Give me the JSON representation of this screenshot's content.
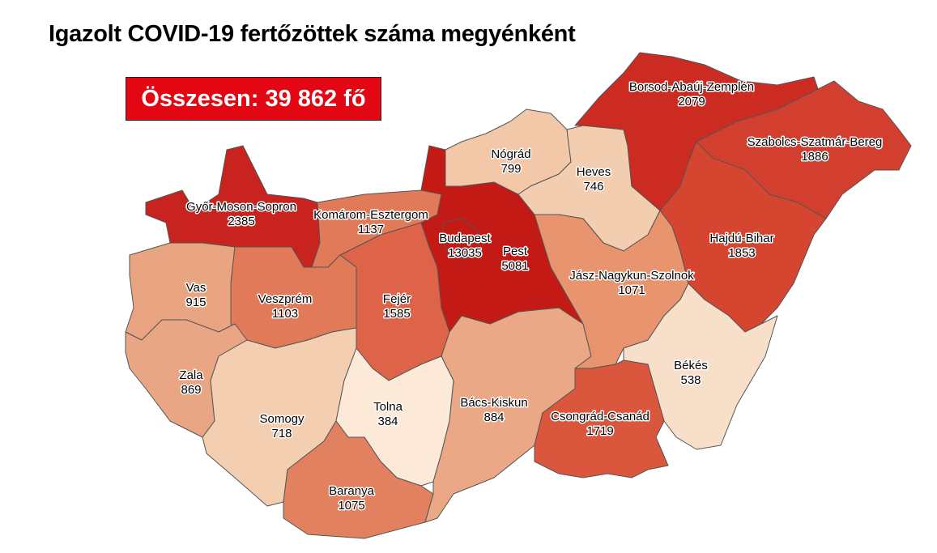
{
  "title": "Igazolt COVID-19 fertőzöttek száma megyénként",
  "total_label": "Összesen: 39 862 fő",
  "counties": [
    {
      "name": "Győr-Moson-Sopron",
      "value": "2385",
      "color": "#c8231e"
    },
    {
      "name": "Komárom-Esztergom",
      "value": "1137",
      "color": "#e07a58"
    },
    {
      "name": "Vas",
      "value": "915",
      "color": "#e9a482"
    },
    {
      "name": "Veszprém",
      "value": "1103",
      "color": "#e07a58"
    },
    {
      "name": "Fejér",
      "value": "1585",
      "color": "#dd6449"
    },
    {
      "name": "Zala",
      "value": "869",
      "color": "#e9a684"
    },
    {
      "name": "Somogy",
      "value": "718",
      "color": "#f3ceb1"
    },
    {
      "name": "Tolna",
      "value": "384",
      "color": "#fce9d8"
    },
    {
      "name": "Baranya",
      "value": "1075",
      "color": "#e2815f"
    },
    {
      "name": "Bács-Kiskun",
      "value": "884",
      "color": "#eaa886"
    },
    {
      "name": "Pest",
      "value": "5081",
      "color": "#c41a16"
    },
    {
      "name": "Budapest",
      "value": "13035",
      "color": "#c41a16"
    },
    {
      "name": "Nógrád",
      "value": "799",
      "color": "#f2c8a8"
    },
    {
      "name": "Heves",
      "value": "746",
      "color": "#f3cdb0"
    },
    {
      "name": "Borsod-Abaúj-Zemplén",
      "value": "2079",
      "color": "#cc2b22"
    },
    {
      "name": "Szabolcs-Szatmár-Bereg",
      "value": "1886",
      "color": "#d33f2e"
    },
    {
      "name": "Hajdú-Bihar",
      "value": "1853",
      "color": "#d6452f"
    },
    {
      "name": "Jász-Nagykun-Szolnok",
      "value": "1071",
      "color": "#e8946f"
    },
    {
      "name": "Békés",
      "value": "538",
      "color": "#f8dfc9"
    },
    {
      "name": "Csongrád-Csanád",
      "value": "1719",
      "color": "#da573e"
    }
  ]
}
